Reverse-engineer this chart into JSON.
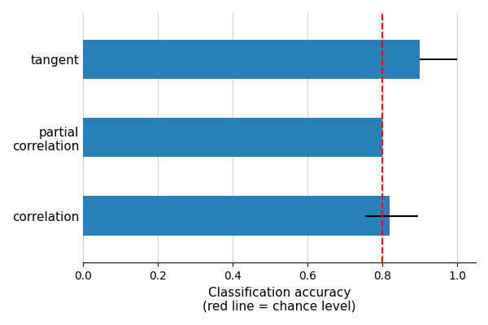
{
  "categories": [
    "correlation",
    "partial\ncorrelation",
    "tangent"
  ],
  "values": [
    0.82,
    0.8,
    0.9
  ],
  "xerr_low": [
    0.065,
    0.0,
    0.0
  ],
  "xerr_high": [
    0.075,
    0.0,
    0.1
  ],
  "bar_color": "#2980b9",
  "chance_level": 0.8,
  "xlim": [
    0.0,
    1.05
  ],
  "xlabel_line1": "Classification accuracy",
  "xlabel_line2": "(red line = chance level)",
  "chance_color": "red",
  "bar_height": 0.5,
  "figsize": [
    6.0,
    4.0
  ],
  "dpi": 100
}
